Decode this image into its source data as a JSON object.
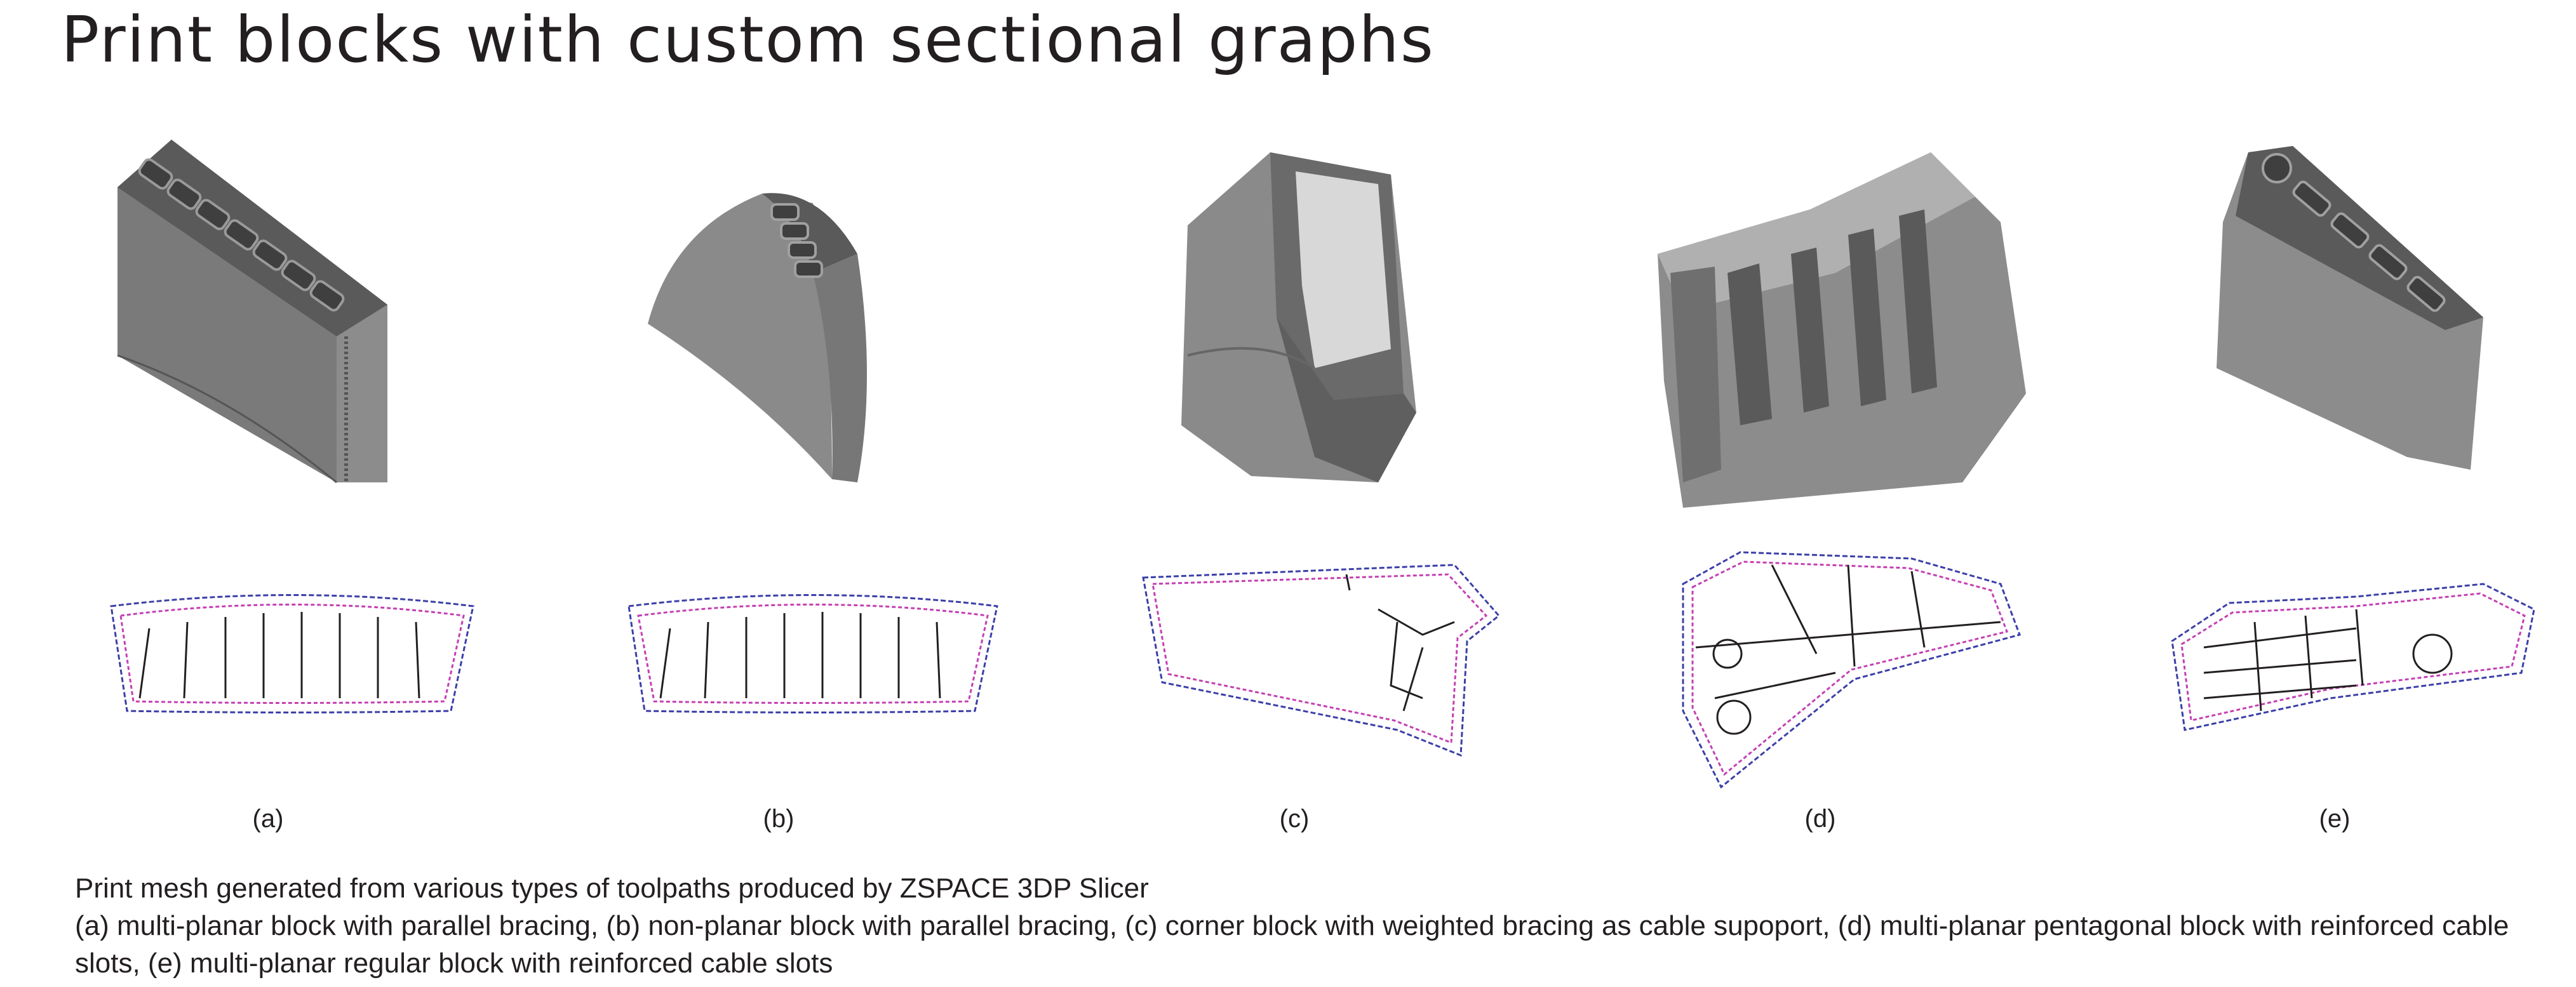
{
  "title": "Print blocks with custom sectional graphs",
  "panels": [
    {
      "label": "(a)"
    },
    {
      "label": "(b)"
    },
    {
      "label": "(c)"
    },
    {
      "label": "(d)"
    },
    {
      "label": "(e)"
    }
  ],
  "caption": {
    "line1": "Print mesh generated from various types of toolpaths produced by ZSPACE 3DP Slicer",
    "line2": "(a) multi-planar block with parallel bracing, (b) non-planar block with parallel bracing, (c) corner block with weighted bracing as cable supoport, (d) multi-planar pentagonal block with reinforced cable slots, (e) multi-planar regular block with reinforced cable slots"
  },
  "colors": {
    "mesh_face": "#7a7a7a",
    "mesh_dark": "#4d4d4d",
    "mesh_light": "#9a9a9a",
    "toolpath_magenta": "#c43fb3",
    "toolpath_blue": "#3b3fa8",
    "toolpath_black": "#231f20"
  }
}
